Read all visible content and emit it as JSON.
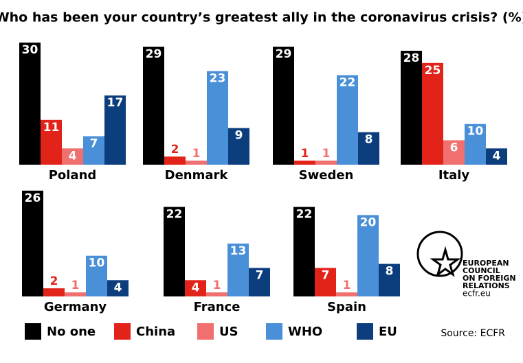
{
  "chart_data": {
    "type": "bar",
    "title": "Who has been your country’s greatest ally in the coronavirus crisis? (%)",
    "categories": [
      "Poland",
      "Denmark",
      "Sweden",
      "Italy",
      "Germany",
      "France",
      "Spain"
    ],
    "series": [
      {
        "name": "No one",
        "color": "#000000",
        "values": [
          30,
          29,
          29,
          28,
          26,
          22,
          22
        ]
      },
      {
        "name": "China",
        "color": "#e2231a",
        "values": [
          11,
          2,
          1,
          25,
          2,
          4,
          7
        ]
      },
      {
        "name": "US",
        "color": "#f07070",
        "values": [
          4,
          1,
          1,
          6,
          1,
          1,
          1
        ]
      },
      {
        "name": "WHO",
        "color": "#4a90d9",
        "values": [
          7,
          23,
          22,
          10,
          10,
          13,
          20
        ]
      },
      {
        "name": "EU",
        "color": "#0c3e7e",
        "values": [
          17,
          9,
          8,
          4,
          4,
          7,
          8
        ]
      }
    ],
    "source": "Source: ECFR",
    "logo": [
      "EUROPEAN",
      "COUNCIL",
      "ON FOREIGN",
      "RELATIONS",
      "ecfr.eu"
    ]
  }
}
